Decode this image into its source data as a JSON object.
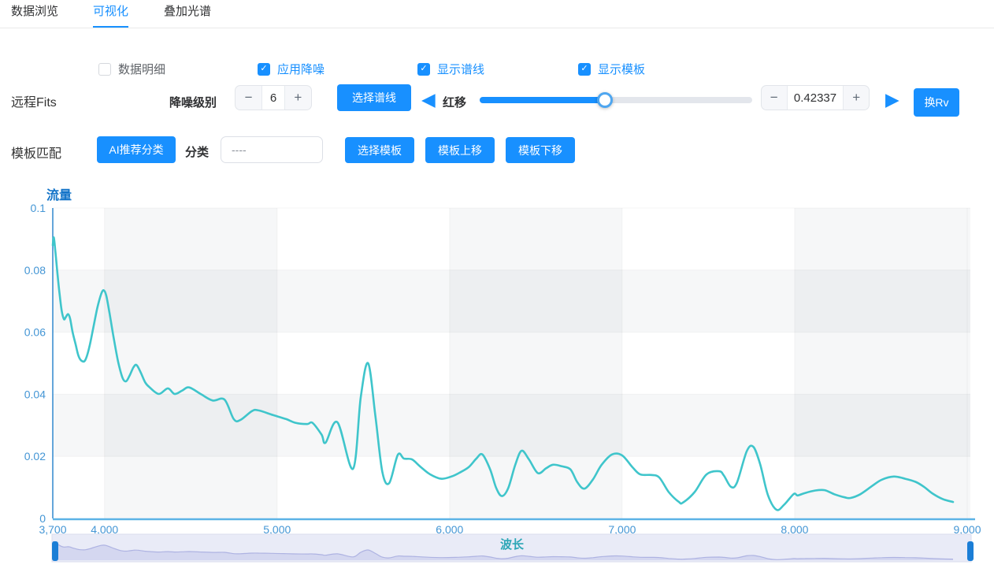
{
  "tabs": [
    {
      "label": "数据浏览",
      "active": false
    },
    {
      "label": "可视化",
      "active": true
    },
    {
      "label": "叠加光谱",
      "active": false
    }
  ],
  "icons": {
    "check": "✓",
    "prev_triangle": "◀",
    "next_triangle": "▶"
  },
  "controls": {
    "checkboxes": [
      {
        "label": "数据明细",
        "checked": false
      },
      {
        "label": "应用降噪",
        "checked": true
      },
      {
        "label": "显示谱线",
        "checked": true
      },
      {
        "label": "显示模板",
        "checked": true
      }
    ],
    "remote_fits_label": "远程Fits",
    "denoise_level_label": "降噪级别",
    "denoise_stepper": {
      "minus": "−",
      "value": "6",
      "plus": "+"
    },
    "select_line_button": "选择谱线",
    "redshift_label": "红移",
    "redshift_stepper": {
      "minus": "−",
      "value": "0.42337",
      "plus": "+"
    },
    "change_rv_button": "换Rv",
    "template_match_label": "模板匹配",
    "ai_classify_button": "AI推荐分类",
    "classify_label": "分类",
    "classify_value": "----",
    "select_template_button": "选择模板",
    "template_up_button": "模板上移",
    "template_down_button": "模板下移"
  },
  "colors": {
    "primary": "#1890ff",
    "y_axis": "#3e8fd0",
    "x_axis": "#5cb3e6",
    "tick_label": "#4496d5",
    "chart_title": "#1273c8",
    "series": "#3fc5cb",
    "wavelength_label": "#2ca6b6",
    "band_shade": "rgba(55,65,85,0.045)",
    "gridline": "rgba(0,0,0,0.04)",
    "brush_bg": "#e9ebf7",
    "brush_border": "#dadded",
    "brush_line": "#aeb3e2",
    "brush_fill": "rgba(174,179,226,0.35)",
    "brush_handle": "#1b7ed6"
  },
  "chart_data": {
    "type": "line",
    "ylabel": "流量",
    "xlabel": "波长",
    "xlim": [
      3700,
      9000
    ],
    "ylim": [
      0,
      0.1
    ],
    "x_ticks": {
      "values": [
        3700,
        4000,
        5000,
        6000,
        7000,
        8000,
        9000
      ],
      "labels": [
        "3,700",
        "4,000",
        "5,000",
        "6,000",
        "7,000",
        "8,000",
        "9,000"
      ]
    },
    "y_ticks": {
      "values": [
        0,
        0.02,
        0.04,
        0.06,
        0.08,
        0.1
      ],
      "labels": [
        "0",
        "0.02",
        "0.04",
        "0.06",
        "0.08",
        "0.1"
      ]
    },
    "grid": "checkerboard-split-area",
    "legend": "none",
    "series": [
      {
        "name": "spectrum-flux",
        "points": [
          [
            3700,
            0.088
          ],
          [
            3706,
            0.0905
          ],
          [
            3715,
            0.086
          ],
          [
            3727,
            0.079
          ],
          [
            3740,
            0.072
          ],
          [
            3752,
            0.0668
          ],
          [
            3765,
            0.0642
          ],
          [
            3775,
            0.0648
          ],
          [
            3788,
            0.0658
          ],
          [
            3800,
            0.0645
          ],
          [
            3815,
            0.06
          ],
          [
            3832,
            0.0562
          ],
          [
            3850,
            0.0522
          ],
          [
            3872,
            0.0506
          ],
          [
            3890,
            0.0512
          ],
          [
            3912,
            0.0552
          ],
          [
            3935,
            0.0615
          ],
          [
            3958,
            0.0678
          ],
          [
            3980,
            0.0722
          ],
          [
            3995,
            0.0735
          ],
          [
            4010,
            0.0718
          ],
          [
            4030,
            0.0658
          ],
          [
            4055,
            0.0575
          ],
          [
            4080,
            0.0502
          ],
          [
            4105,
            0.0452
          ],
          [
            4125,
            0.0442
          ],
          [
            4145,
            0.046
          ],
          [
            4168,
            0.0487
          ],
          [
            4186,
            0.0494
          ],
          [
            4210,
            0.047
          ],
          [
            4236,
            0.0438
          ],
          [
            4262,
            0.0422
          ],
          [
            4315,
            0.0401
          ],
          [
            4367,
            0.0419
          ],
          [
            4406,
            0.0401
          ],
          [
            4450,
            0.0412
          ],
          [
            4490,
            0.0422
          ],
          [
            4560,
            0.04
          ],
          [
            4627,
            0.038
          ],
          [
            4695,
            0.0383
          ],
          [
            4749,
            0.032
          ],
          [
            4787,
            0.0317
          ],
          [
            4855,
            0.0346
          ],
          [
            4893,
            0.0348
          ],
          [
            4977,
            0.0333
          ],
          [
            5053,
            0.032
          ],
          [
            5107,
            0.0308
          ],
          [
            5175,
            0.0304
          ],
          [
            5205,
            0.0308
          ],
          [
            5258,
            0.027
          ],
          [
            5281,
            0.0244
          ],
          [
            5350,
            0.031
          ],
          [
            5440,
            0.016
          ],
          [
            5485,
            0.039
          ],
          [
            5528,
            0.05
          ],
          [
            5570,
            0.033
          ],
          [
            5610,
            0.015
          ],
          [
            5650,
            0.0114
          ],
          [
            5700,
            0.0205
          ],
          [
            5735,
            0.0193
          ],
          [
            5782,
            0.019
          ],
          [
            5830,
            0.0167
          ],
          [
            5885,
            0.0143
          ],
          [
            5950,
            0.0128
          ],
          [
            6010,
            0.0135
          ],
          [
            6056,
            0.0147
          ],
          [
            6110,
            0.0165
          ],
          [
            6155,
            0.0193
          ],
          [
            6190,
            0.0206
          ],
          [
            6235,
            0.0158
          ],
          [
            6270,
            0.0098
          ],
          [
            6303,
            0.0072
          ],
          [
            6340,
            0.0098
          ],
          [
            6380,
            0.0172
          ],
          [
            6417,
            0.0218
          ],
          [
            6460,
            0.019
          ],
          [
            6512,
            0.0146
          ],
          [
            6560,
            0.0162
          ],
          [
            6600,
            0.0173
          ],
          [
            6650,
            0.0168
          ],
          [
            6700,
            0.0158
          ],
          [
            6740,
            0.0117
          ],
          [
            6781,
            0.0096
          ],
          [
            6830,
            0.0125
          ],
          [
            6880,
            0.0172
          ],
          [
            6941,
            0.0206
          ],
          [
            7000,
            0.0203
          ],
          [
            7060,
            0.0165
          ],
          [
            7105,
            0.0142
          ],
          [
            7169,
            0.014
          ],
          [
            7215,
            0.0132
          ],
          [
            7270,
            0.0085
          ],
          [
            7329,
            0.0053
          ],
          [
            7352,
            0.0051
          ],
          [
            7420,
            0.0085
          ],
          [
            7489,
            0.0142
          ],
          [
            7562,
            0.0152
          ],
          [
            7590,
            0.0138
          ],
          [
            7630,
            0.0102
          ],
          [
            7665,
            0.0115
          ],
          [
            7722,
            0.0216
          ],
          [
            7760,
            0.0231
          ],
          [
            7800,
            0.0175
          ],
          [
            7845,
            0.0075
          ],
          [
            7895,
            0.0028
          ],
          [
            7940,
            0.0045
          ],
          [
            7995,
            0.0079
          ],
          [
            8017,
            0.0074
          ],
          [
            8060,
            0.0082
          ],
          [
            8120,
            0.009
          ],
          [
            8174,
            0.0091
          ],
          [
            8230,
            0.0078
          ],
          [
            8290,
            0.0068
          ],
          [
            8324,
            0.0066
          ],
          [
            8380,
            0.0078
          ],
          [
            8450,
            0.0105
          ],
          [
            8505,
            0.0125
          ],
          [
            8575,
            0.0135
          ],
          [
            8640,
            0.0128
          ],
          [
            8700,
            0.0118
          ],
          [
            8749,
            0.0102
          ],
          [
            8800,
            0.008
          ],
          [
            8860,
            0.0062
          ],
          [
            8918,
            0.0053
          ]
        ]
      }
    ]
  }
}
